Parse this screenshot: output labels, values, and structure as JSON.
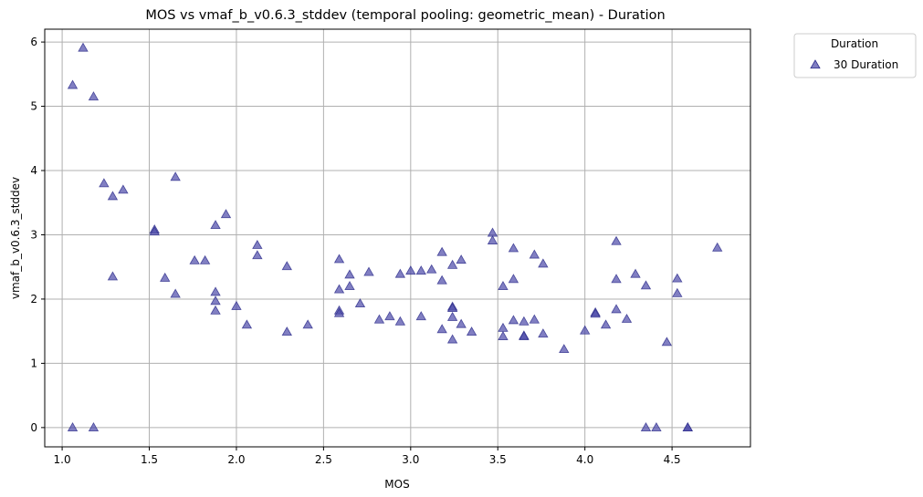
{
  "chart_data": {
    "type": "scatter",
    "title": "MOS vs vmaf_b_v0.6.3_stddev (temporal pooling: geometric_mean) - Duration",
    "xlabel": "MOS",
    "ylabel": "vmaf_b_v0.6.3_stddev",
    "xlim": [
      0.9,
      4.95
    ],
    "ylim": [
      -0.3,
      6.2
    ],
    "xticks": [
      1.0,
      1.5,
      2.0,
      2.5,
      3.0,
      3.5,
      4.0,
      4.5
    ],
    "xtick_labels": [
      "1.0",
      "1.5",
      "2.0",
      "2.5",
      "3.0",
      "3.5",
      "4.0",
      "4.5"
    ],
    "yticks": [
      0,
      1,
      2,
      3,
      4,
      5,
      6
    ],
    "ytick_labels": [
      "0",
      "1",
      "2",
      "3",
      "4",
      "5",
      "6"
    ],
    "grid": true,
    "legend": {
      "title": "Duration",
      "placement": "outside-top-right"
    },
    "marker": "triangle",
    "series": [
      {
        "name": "30 Duration",
        "color": "#4b48a8",
        "points": [
          [
            1.06,
            5.33
          ],
          [
            1.12,
            5.91
          ],
          [
            1.18,
            5.15
          ],
          [
            1.06,
            0.0
          ],
          [
            1.18,
            0.0
          ],
          [
            1.24,
            3.8
          ],
          [
            1.29,
            3.6
          ],
          [
            1.35,
            3.7
          ],
          [
            1.29,
            2.35
          ],
          [
            1.53,
            3.08
          ],
          [
            1.53,
            3.05
          ],
          [
            1.59,
            2.33
          ],
          [
            1.65,
            3.9
          ],
          [
            1.65,
            2.08
          ],
          [
            1.76,
            2.6
          ],
          [
            1.82,
            2.6
          ],
          [
            1.88,
            3.15
          ],
          [
            1.88,
            2.11
          ],
          [
            1.88,
            1.97
          ],
          [
            1.88,
            1.82
          ],
          [
            1.94,
            3.32
          ],
          [
            2.0,
            1.89
          ],
          [
            2.06,
            1.6
          ],
          [
            2.12,
            2.84
          ],
          [
            2.12,
            2.68
          ],
          [
            2.29,
            2.51
          ],
          [
            2.29,
            1.49
          ],
          [
            2.41,
            1.6
          ],
          [
            2.59,
            2.62
          ],
          [
            2.59,
            2.15
          ],
          [
            2.59,
            1.82
          ],
          [
            2.59,
            1.78
          ],
          [
            2.65,
            2.38
          ],
          [
            2.65,
            2.2
          ],
          [
            2.71,
            1.93
          ],
          [
            2.76,
            2.42
          ],
          [
            2.82,
            1.68
          ],
          [
            2.88,
            1.73
          ],
          [
            2.94,
            2.39
          ],
          [
            2.94,
            1.65
          ],
          [
            3.0,
            2.44
          ],
          [
            3.06,
            2.44
          ],
          [
            3.06,
            1.73
          ],
          [
            3.12,
            2.46
          ],
          [
            3.18,
            2.73
          ],
          [
            3.18,
            2.29
          ],
          [
            3.18,
            1.53
          ],
          [
            3.24,
            2.53
          ],
          [
            3.24,
            1.88
          ],
          [
            3.24,
            1.86
          ],
          [
            3.24,
            1.72
          ],
          [
            3.24,
            1.37
          ],
          [
            3.29,
            2.61
          ],
          [
            3.29,
            1.61
          ],
          [
            3.35,
            1.49
          ],
          [
            3.47,
            3.03
          ],
          [
            3.47,
            2.91
          ],
          [
            3.53,
            2.2
          ],
          [
            3.53,
            1.55
          ],
          [
            3.53,
            1.42
          ],
          [
            3.59,
            2.79
          ],
          [
            3.59,
            2.31
          ],
          [
            3.59,
            1.67
          ],
          [
            3.65,
            1.65
          ],
          [
            3.65,
            1.43
          ],
          [
            3.65,
            1.42
          ],
          [
            3.71,
            2.69
          ],
          [
            3.71,
            1.68
          ],
          [
            3.76,
            2.55
          ],
          [
            3.76,
            1.46
          ],
          [
            3.88,
            1.22
          ],
          [
            4.0,
            1.51
          ],
          [
            4.06,
            1.79
          ],
          [
            4.06,
            1.77
          ],
          [
            4.12,
            1.6
          ],
          [
            4.18,
            2.9
          ],
          [
            4.18,
            2.31
          ],
          [
            4.18,
            1.84
          ],
          [
            4.24,
            1.69
          ],
          [
            4.29,
            2.39
          ],
          [
            4.35,
            2.21
          ],
          [
            4.35,
            0.0
          ],
          [
            4.41,
            0.0
          ],
          [
            4.47,
            1.33
          ],
          [
            4.53,
            2.32
          ],
          [
            4.53,
            2.09
          ],
          [
            4.59,
            0.0
          ],
          [
            4.59,
            0.0
          ],
          [
            4.76,
            2.8
          ]
        ]
      }
    ]
  }
}
